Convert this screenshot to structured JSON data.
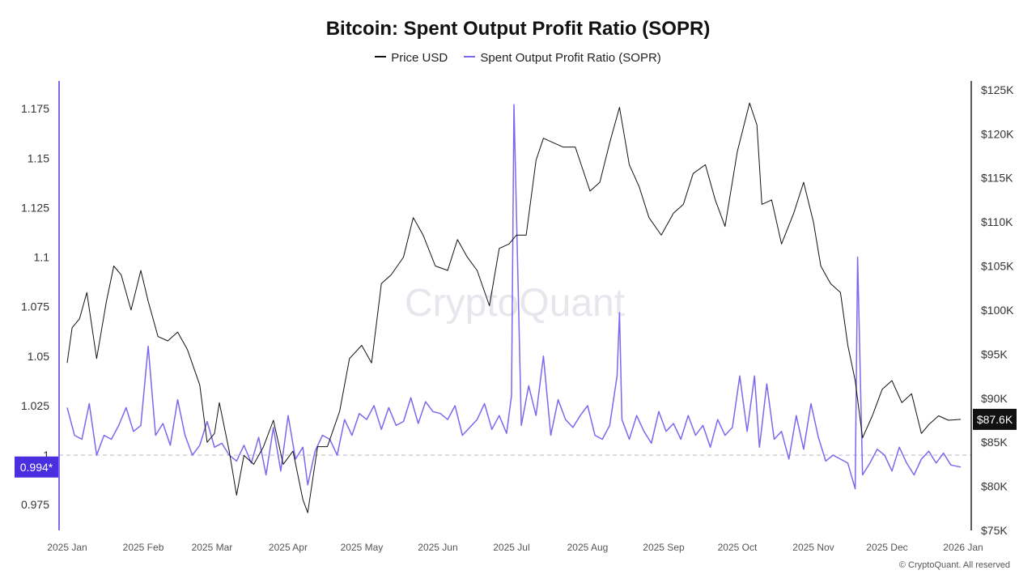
{
  "chart_data": {
    "type": "line",
    "title": "Bitcoin: Spent Output Profit Ratio (SOPR)",
    "legend": {
      "placement": "top-center"
    },
    "watermark": "CryptoQuant",
    "credit": "© CryptoQuant. All reserved",
    "colors": {
      "price": "#111111",
      "sopr": "#7b68ee",
      "marker": "#4a2fe0",
      "last_price_bg": "#111111"
    },
    "left_axis": {
      "range": [
        0.962,
        1.189
      ],
      "ticks": [
        0.975,
        1,
        1.025,
        1.05,
        1.075,
        1.1,
        1.125,
        1.15,
        1.175
      ],
      "tick_labels": [
        "0.975",
        "1",
        "1.025",
        "1.05",
        "1.075",
        "1.1",
        "1.125",
        "1.15",
        "1.175"
      ],
      "reference_line": 1,
      "current_label": "0.994*",
      "current_value": 0.994
    },
    "right_axis": {
      "range": [
        75000,
        126000
      ],
      "ticks": [
        75000,
        80000,
        85000,
        90000,
        95000,
        100000,
        105000,
        110000,
        115000,
        120000,
        125000
      ],
      "tick_labels": [
        "$75K",
        "$80K",
        "$85K",
        "$90K",
        "$95K",
        "$100K",
        "$105K",
        "$110K",
        "$115K",
        "$120K",
        "$125K"
      ],
      "current_label": "$87.6K",
      "current_value": 87600
    },
    "x_axis": {
      "range": [
        "2025-01-01",
        "2026-01-01"
      ],
      "ticks": [
        "2025-01-01",
        "2025-02-01",
        "2025-03-01",
        "2025-04-01",
        "2025-05-01",
        "2025-06-01",
        "2025-07-01",
        "2025-08-01",
        "2025-09-01",
        "2025-10-01",
        "2025-11-01",
        "2025-12-01",
        "2026-01-01"
      ],
      "tick_labels": [
        "2025 Jan",
        "2025 Feb",
        "2025 Mar",
        "2025 Apr",
        "2025 May",
        "2025 Jun",
        "2025 Jul",
        "2025 Aug",
        "2025 Sep",
        "2025 Oct",
        "2025 Nov",
        "2025 Dec",
        "2026 Jan"
      ]
    },
    "series": [
      {
        "name": "Price USD",
        "axis": "right",
        "x": [
          "2025-01-01",
          "2025-01-03",
          "2025-01-06",
          "2025-01-09",
          "2025-01-13",
          "2025-01-17",
          "2025-01-20",
          "2025-01-23",
          "2025-01-27",
          "2025-01-31",
          "2025-02-03",
          "2025-02-07",
          "2025-02-11",
          "2025-02-15",
          "2025-02-19",
          "2025-02-24",
          "2025-02-27",
          "2025-03-02",
          "2025-03-04",
          "2025-03-08",
          "2025-03-11",
          "2025-03-14",
          "2025-03-18",
          "2025-03-22",
          "2025-03-26",
          "2025-03-30",
          "2025-04-03",
          "2025-04-07",
          "2025-04-09",
          "2025-04-13",
          "2025-04-17",
          "2025-04-22",
          "2025-04-26",
          "2025-05-01",
          "2025-05-05",
          "2025-05-09",
          "2025-05-13",
          "2025-05-18",
          "2025-05-22",
          "2025-05-26",
          "2025-05-31",
          "2025-06-05",
          "2025-06-09",
          "2025-06-13",
          "2025-06-17",
          "2025-06-22",
          "2025-06-26",
          "2025-06-30",
          "2025-07-03",
          "2025-07-07",
          "2025-07-11",
          "2025-07-14",
          "2025-07-18",
          "2025-07-22",
          "2025-07-27",
          "2025-08-02",
          "2025-08-06",
          "2025-08-10",
          "2025-08-14",
          "2025-08-18",
          "2025-08-22",
          "2025-08-26",
          "2025-08-31",
          "2025-09-05",
          "2025-09-09",
          "2025-09-13",
          "2025-09-18",
          "2025-09-22",
          "2025-09-26",
          "2025-10-01",
          "2025-10-06",
          "2025-10-09",
          "2025-10-11",
          "2025-10-15",
          "2025-10-19",
          "2025-10-24",
          "2025-10-28",
          "2025-11-01",
          "2025-11-04",
          "2025-11-08",
          "2025-11-12",
          "2025-11-15",
          "2025-11-18",
          "2025-11-21",
          "2025-11-25",
          "2025-11-29",
          "2025-12-03",
          "2025-12-07",
          "2025-12-11",
          "2025-12-15",
          "2025-12-18",
          "2025-12-22",
          "2025-12-26",
          "2025-12-31"
        ],
        "values": [
          94000,
          98000,
          99000,
          102000,
          94500,
          101000,
          105000,
          104000,
          100000,
          104500,
          101000,
          97000,
          96500,
          97500,
          95500,
          91500,
          85000,
          86000,
          89500,
          84000,
          79000,
          83500,
          82500,
          84500,
          87500,
          82500,
          84000,
          78500,
          77000,
          84500,
          84500,
          88500,
          94500,
          96000,
          94000,
          103000,
          104000,
          106000,
          110500,
          108500,
          105000,
          104500,
          108000,
          106000,
          104500,
          100500,
          107000,
          107500,
          108500,
          108500,
          117000,
          119500,
          119000,
          118500,
          118500,
          113500,
          114500,
          119000,
          123000,
          116500,
          114000,
          110500,
          108500,
          111000,
          112000,
          115500,
          116500,
          112500,
          109500,
          118000,
          123500,
          121000,
          112000,
          112500,
          107500,
          111000,
          114500,
          110000,
          105000,
          103000,
          102000,
          96000,
          92000,
          85500,
          88000,
          91000,
          92000,
          89500,
          90500,
          86000,
          87000,
          88000,
          87500,
          87600
        ]
      },
      {
        "name": "Spent Output Profit Ratio (SOPR)",
        "axis": "left",
        "x": [
          "2025-01-01",
          "2025-01-04",
          "2025-01-07",
          "2025-01-10",
          "2025-01-13",
          "2025-01-16",
          "2025-01-19",
          "2025-01-22",
          "2025-01-25",
          "2025-01-28",
          "2025-01-31",
          "2025-02-03",
          "2025-02-06",
          "2025-02-09",
          "2025-02-12",
          "2025-02-15",
          "2025-02-18",
          "2025-02-21",
          "2025-02-24",
          "2025-02-27",
          "2025-03-02",
          "2025-03-05",
          "2025-03-08",
          "2025-03-11",
          "2025-03-14",
          "2025-03-17",
          "2025-03-20",
          "2025-03-23",
          "2025-03-26",
          "2025-03-29",
          "2025-04-01",
          "2025-04-04",
          "2025-04-07",
          "2025-04-09",
          "2025-04-12",
          "2025-04-15",
          "2025-04-18",
          "2025-04-21",
          "2025-04-24",
          "2025-04-27",
          "2025-04-30",
          "2025-05-03",
          "2025-05-06",
          "2025-05-09",
          "2025-05-12",
          "2025-05-15",
          "2025-05-18",
          "2025-05-21",
          "2025-05-24",
          "2025-05-27",
          "2025-05-30",
          "2025-06-02",
          "2025-06-05",
          "2025-06-08",
          "2025-06-11",
          "2025-06-14",
          "2025-06-17",
          "2025-06-20",
          "2025-06-23",
          "2025-06-26",
          "2025-06-29",
          "2025-07-01",
          "2025-07-02",
          "2025-07-05",
          "2025-07-08",
          "2025-07-11",
          "2025-07-14",
          "2025-07-17",
          "2025-07-20",
          "2025-07-23",
          "2025-07-26",
          "2025-07-29",
          "2025-08-01",
          "2025-08-04",
          "2025-08-07",
          "2025-08-10",
          "2025-08-13",
          "2025-08-14",
          "2025-08-15",
          "2025-08-18",
          "2025-08-21",
          "2025-08-24",
          "2025-08-27",
          "2025-08-30",
          "2025-09-02",
          "2025-09-05",
          "2025-09-08",
          "2025-09-11",
          "2025-09-14",
          "2025-09-17",
          "2025-09-20",
          "2025-09-23",
          "2025-09-26",
          "2025-09-29",
          "2025-10-02",
          "2025-10-05",
          "2025-10-08",
          "2025-10-10",
          "2025-10-13",
          "2025-10-16",
          "2025-10-19",
          "2025-10-22",
          "2025-10-25",
          "2025-10-28",
          "2025-10-31",
          "2025-11-03",
          "2025-11-06",
          "2025-11-09",
          "2025-11-12",
          "2025-11-15",
          "2025-11-18",
          "2025-11-19",
          "2025-11-21",
          "2025-11-24",
          "2025-11-27",
          "2025-11-30",
          "2025-12-03",
          "2025-12-06",
          "2025-12-09",
          "2025-12-12",
          "2025-12-15",
          "2025-12-18",
          "2025-12-21",
          "2025-12-24",
          "2025-12-27",
          "2025-12-31"
        ],
        "values": [
          1.024,
          1.01,
          1.008,
          1.026,
          1.0,
          1.01,
          1.008,
          1.015,
          1.024,
          1.012,
          1.015,
          1.055,
          1.01,
          1.016,
          1.005,
          1.028,
          1.01,
          1.0,
          1.005,
          1.017,
          1.004,
          1.006,
          1.0,
          0.997,
          1.005,
          0.996,
          1.009,
          0.99,
          1.014,
          0.992,
          1.02,
          0.998,
          1.004,
          0.985,
          1.002,
          1.01,
          1.008,
          1.0,
          1.018,
          1.01,
          1.021,
          1.018,
          1.025,
          1.013,
          1.024,
          1.015,
          1.017,
          1.029,
          1.016,
          1.027,
          1.022,
          1.021,
          1.018,
          1.025,
          1.01,
          1.014,
          1.018,
          1.026,
          1.013,
          1.02,
          1.011,
          1.03,
          1.177,
          1.015,
          1.035,
          1.02,
          1.05,
          1.01,
          1.028,
          1.018,
          1.014,
          1.02,
          1.025,
          1.01,
          1.008,
          1.015,
          1.04,
          1.072,
          1.018,
          1.008,
          1.02,
          1.012,
          1.006,
          1.022,
          1.012,
          1.016,
          1.008,
          1.02,
          1.01,
          1.015,
          1.004,
          1.018,
          1.01,
          1.014,
          1.04,
          1.012,
          1.04,
          1.004,
          1.036,
          1.008,
          1.012,
          0.998,
          1.02,
          1.003,
          1.026,
          1.009,
          0.997,
          1.0,
          0.998,
          0.996,
          0.983,
          1.1,
          0.99,
          0.996,
          1.003,
          1.0,
          0.992,
          1.004,
          0.996,
          0.99,
          0.998,
          1.002,
          0.996,
          1.001,
          0.995,
          0.994
        ]
      }
    ]
  }
}
